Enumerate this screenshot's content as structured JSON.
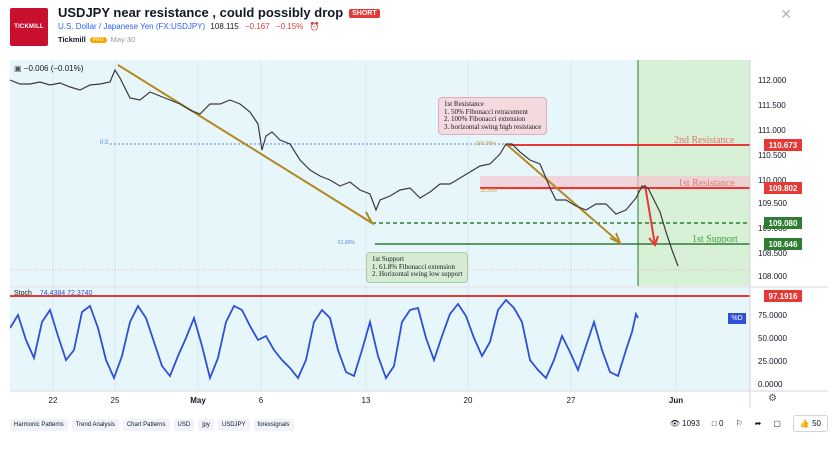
{
  "header": {
    "logo_text": "TICKMILL",
    "title": "USDJPY near resistance , could possibly drop",
    "badge": "SHORT",
    "symbol_name": "U.S. Dollar / Japanese Yen (FX:USDJPY)",
    "price": "108.115",
    "change": "−0.167",
    "change_pct": "−0.15%",
    "author": "Tickmill",
    "author_badge": "PRO",
    "date": "May 30"
  },
  "chart": {
    "indicator_readout": "−0.006 (−0.01%)",
    "price_axis": [
      "112.000",
      "111.500",
      "111.000",
      "110.500",
      "110.000",
      "109.500",
      "109.000",
      "108.500",
      "108.000"
    ],
    "level_tags": {
      "second_resistance": "110.673",
      "first_resistance": "109.802",
      "mid": "109.080",
      "first_support": "108.646"
    },
    "labels": {
      "second_resistance": "2nd Resistance",
      "first_resistance": "1st Resistance",
      "first_support": "1st Support",
      "fib_05": "0.5",
      "fib_618": "61.80%",
      "fib_100": "100.00%",
      "fib_382": "38.20%"
    },
    "note_resistance": {
      "l1": "1st Resistance",
      "l2": "1. 50% Fibonacci retracement",
      "l3": "2. 100% Fibonacci extension",
      "l4": "3. horizontal swing high resistance"
    },
    "note_support": {
      "l1": "1st Support",
      "l2": "1. 61.8% Fibonacci extension",
      "l3": "2. Horizontal swing low support"
    },
    "stoch_label": "Stoch",
    "stoch_values": "74.4384  72.3740",
    "stoch_axis": [
      "75.0000",
      "50.0000",
      "25.0000",
      "0.0000"
    ],
    "stoch_tag": "97.1916",
    "stoch_d": "%D",
    "x_axis": [
      "22",
      "25",
      "May",
      "6",
      "13",
      "20",
      "27",
      "Jun"
    ],
    "colors": {
      "resistance": "#e53935",
      "support": "#2e7d32",
      "trend": "#b08a1e",
      "stoch": "#2f4fd6"
    }
  },
  "footer": {
    "tags": [
      "Harmonic Patterns",
      "Trend Analysis",
      "Chart Patterns",
      "USD",
      "jpy",
      "USDJPY",
      "forexsignals"
    ],
    "views": "1093",
    "comments": "0",
    "likes": "50"
  }
}
